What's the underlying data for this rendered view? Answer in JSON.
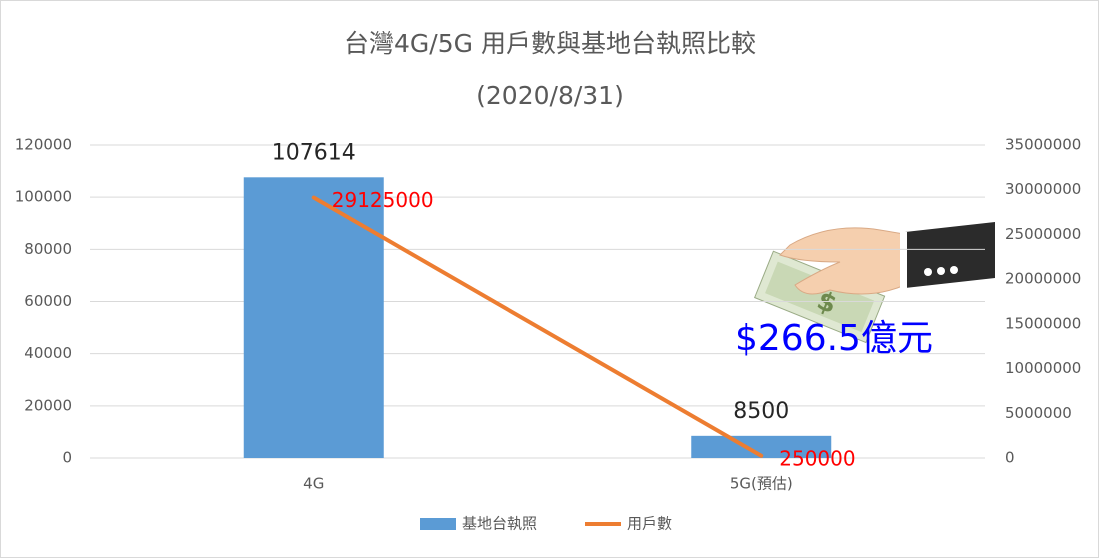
{
  "chart_data": {
    "type": "bar",
    "title": "台灣4G/5G 用戶數與基地台執照比較",
    "subtitle": "(2020/8/31)",
    "categories": [
      "4G",
      "5G(預估)"
    ],
    "series": [
      {
        "name": "基地台執照",
        "type": "bar",
        "color": "#5b9bd5",
        "label_color": "#262626",
        "values": [
          107614,
          8500
        ]
      },
      {
        "name": "用戶數",
        "type": "line",
        "axis": "y2",
        "color": "#ed7d31",
        "label_color": "#ff0000",
        "values": [
          29125000,
          250000
        ]
      }
    ],
    "ylim": [
      0,
      120000
    ],
    "yticks": [
      0,
      20000,
      40000,
      60000,
      80000,
      100000,
      120000
    ],
    "y2lim": [
      0,
      35000000
    ],
    "y2ticks": [
      0,
      5000000,
      10000000,
      15000000,
      20000000,
      25000000,
      30000000,
      35000000
    ],
    "grid": true,
    "legend": "bottom",
    "annotation": "$266.5億元",
    "annotation_color": "#0000ff"
  }
}
